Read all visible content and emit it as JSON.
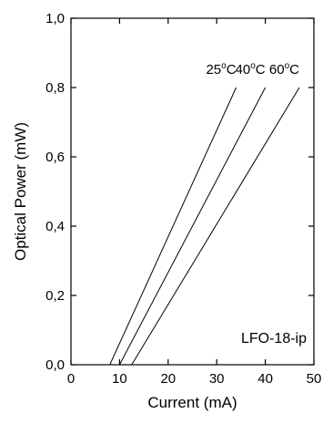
{
  "chart_data": {
    "type": "line",
    "xlabel": "Current (mA)",
    "ylabel": "Optical Power (mW)",
    "xlim": [
      0,
      50
    ],
    "ylim": [
      0,
      1.0
    ],
    "x_ticks": [
      0,
      10,
      20,
      30,
      40,
      50
    ],
    "x_tick_labels": [
      "0",
      "10",
      "20",
      "30",
      "40",
      "50"
    ],
    "y_ticks": [
      0,
      0.2,
      0.4,
      0.6,
      0.8,
      1.0
    ],
    "y_tick_labels": [
      "0,0",
      "0,2",
      "0,4",
      "0,6",
      "0,8",
      "1,0"
    ],
    "grid": false,
    "annotation": "LFO-18-ip",
    "series": [
      {
        "name": "25°C",
        "label_main": "25",
        "label_deg": "o",
        "label_unit": "C",
        "x": [
          0,
          8,
          34
        ],
        "y": [
          0,
          0,
          0.8
        ]
      },
      {
        "name": "40°C",
        "label_main": "40",
        "label_deg": "o",
        "label_unit": "C",
        "x": [
          0,
          10,
          40
        ],
        "y": [
          0,
          0,
          0.8
        ]
      },
      {
        "name": "60°C",
        "label_main": "60",
        "label_deg": "o",
        "label_unit": "C",
        "x": [
          0,
          12.5,
          47
        ],
        "y": [
          0,
          0,
          0.8
        ]
      }
    ]
  }
}
